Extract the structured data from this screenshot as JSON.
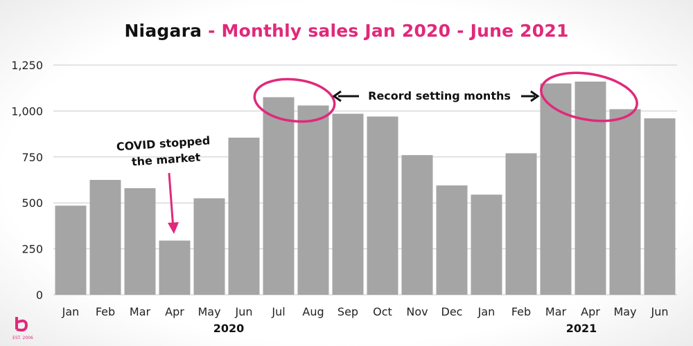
{
  "chart_data": {
    "type": "bar",
    "title": "Niagara",
    "subtitle": "- Monthly sales Jan 2020 - June 2021",
    "categories": [
      "Jan",
      "Feb",
      "Mar",
      "Apr",
      "May",
      "Jun",
      "Jul",
      "Aug",
      "Sep",
      "Oct",
      "Nov",
      "Dec",
      "Jan",
      "Feb",
      "Mar",
      "Apr",
      "May",
      "Jun"
    ],
    "year_labels": [
      {
        "label": "2020",
        "start": 0,
        "end": 11
      },
      {
        "label": "2021",
        "start": 12,
        "end": 17
      }
    ],
    "values": [
      485,
      625,
      580,
      295,
      525,
      855,
      1075,
      1030,
      985,
      970,
      760,
      595,
      545,
      770,
      1150,
      1160,
      1010,
      960
    ],
    "ylim": [
      0,
      1250
    ],
    "yticks": [
      0,
      250,
      500,
      750,
      1000,
      1250
    ],
    "ytick_labels": [
      "0",
      "250",
      "500",
      "750",
      "1,000",
      "1,250"
    ],
    "grid": true,
    "bar_color": "#a5a5a5",
    "accent_color": "#e0297a",
    "annotations": {
      "covid_line1": "COVID stopped",
      "covid_line2": "the market",
      "record": "Record setting months"
    }
  },
  "logo": {
    "text": "EST. 2006"
  }
}
